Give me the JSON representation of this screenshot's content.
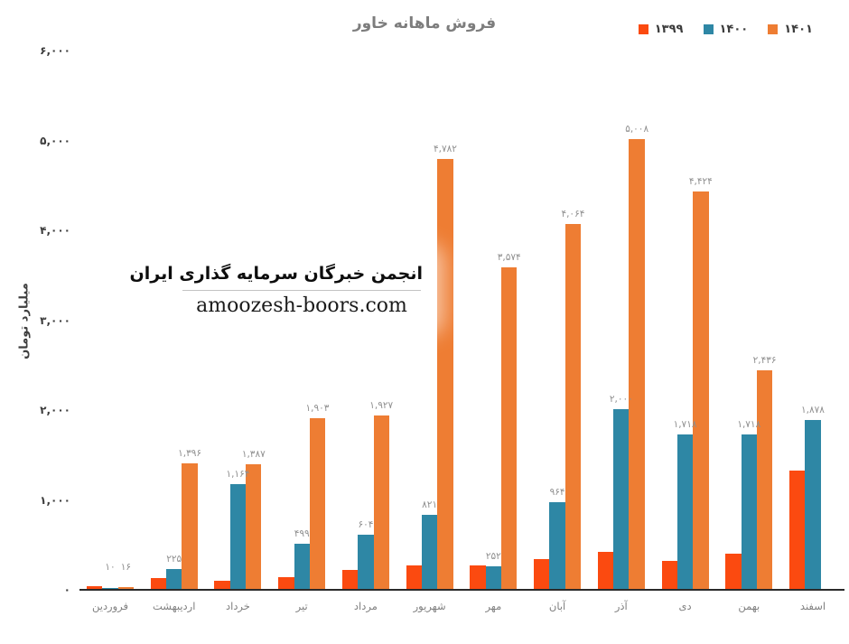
{
  "chart_data": {
    "type": "bar",
    "title": "فروش ماهانه خاور",
    "ylabel": "میلیارد تومان",
    "xlabel": "",
    "ylim": [
      0,
      6000
    ],
    "grid": false,
    "legend_position": "top-right",
    "y_ticks": [
      {
        "value": 6000,
        "label": "۶,۰۰۰"
      },
      {
        "value": 5000,
        "label": "۵,۰۰۰"
      },
      {
        "value": 4000,
        "label": "۴,۰۰۰"
      },
      {
        "value": 3000,
        "label": "۳,۰۰۰"
      },
      {
        "value": 2000,
        "label": "۲,۰۰۰"
      },
      {
        "value": 1000,
        "label": "۱,۰۰۰"
      },
      {
        "value": 0,
        "label": "۰"
      }
    ],
    "categories": [
      "فروردین",
      "اردیبهشت",
      "خرداد",
      "تیر",
      "مرداد",
      "شهریور",
      "مهر",
      "آبان",
      "آذر",
      "دی",
      "بهمن",
      "اسفند"
    ],
    "series": [
      {
        "name": "۱۳۹۹",
        "color": "#fb4a10",
        "values": [
          30,
          120,
          95,
          130,
          210,
          258,
          258,
          335,
          410,
          310,
          390,
          1316
        ],
        "labels": [
          null,
          null,
          null,
          null,
          null,
          null,
          null,
          null,
          null,
          null,
          null,
          null
        ]
      },
      {
        "name": "۱۴۰۰",
        "color": "#2e87a5",
        "values": [
          10,
          225,
          1164,
          499,
          604,
          821,
          252,
          964,
          2000,
          1718,
          1718,
          1878
        ],
        "labels": [
          "۱۰",
          "۲۲۵",
          "۱,۱۶۴",
          "۴۹۹",
          "۶۰۴",
          "۸۲۱",
          "۲۵۲",
          "۹۶۴",
          "۲,۰۰۰",
          "۱,۷۱۸",
          "۱,۷۱۸",
          "۱,۸۷۸"
        ]
      },
      {
        "name": "۱۴۰۱",
        "color": "#ee7d33",
        "values": [
          16,
          1396,
          1387,
          1903,
          1927,
          4782,
          3574,
          4064,
          5008,
          4424,
          2436,
          null
        ],
        "labels": [
          "۱۶",
          "۱,۳۹۶",
          "۱,۳۸۷",
          "۱,۹۰۳",
          "۱,۹۲۷",
          "۴,۷۸۲",
          "۳,۵۷۴",
          "۴,۰۶۴",
          "۵,۰۰۸",
          "۴,۴۲۴",
          "۲,۴۳۶",
          null
        ]
      }
    ],
    "colors": {
      "axis_line": "#2a2a2a",
      "tick_text": "#3b3b3b",
      "month_text": "#7f7f7f",
      "value_label_text": "#8f8f8f",
      "title_text": "#7d7d7d"
    }
  },
  "watermark": {
    "line1": "انجمن خبرگان سرمایه گذاری ایران",
    "line2": "amoozesh-boors.com"
  }
}
